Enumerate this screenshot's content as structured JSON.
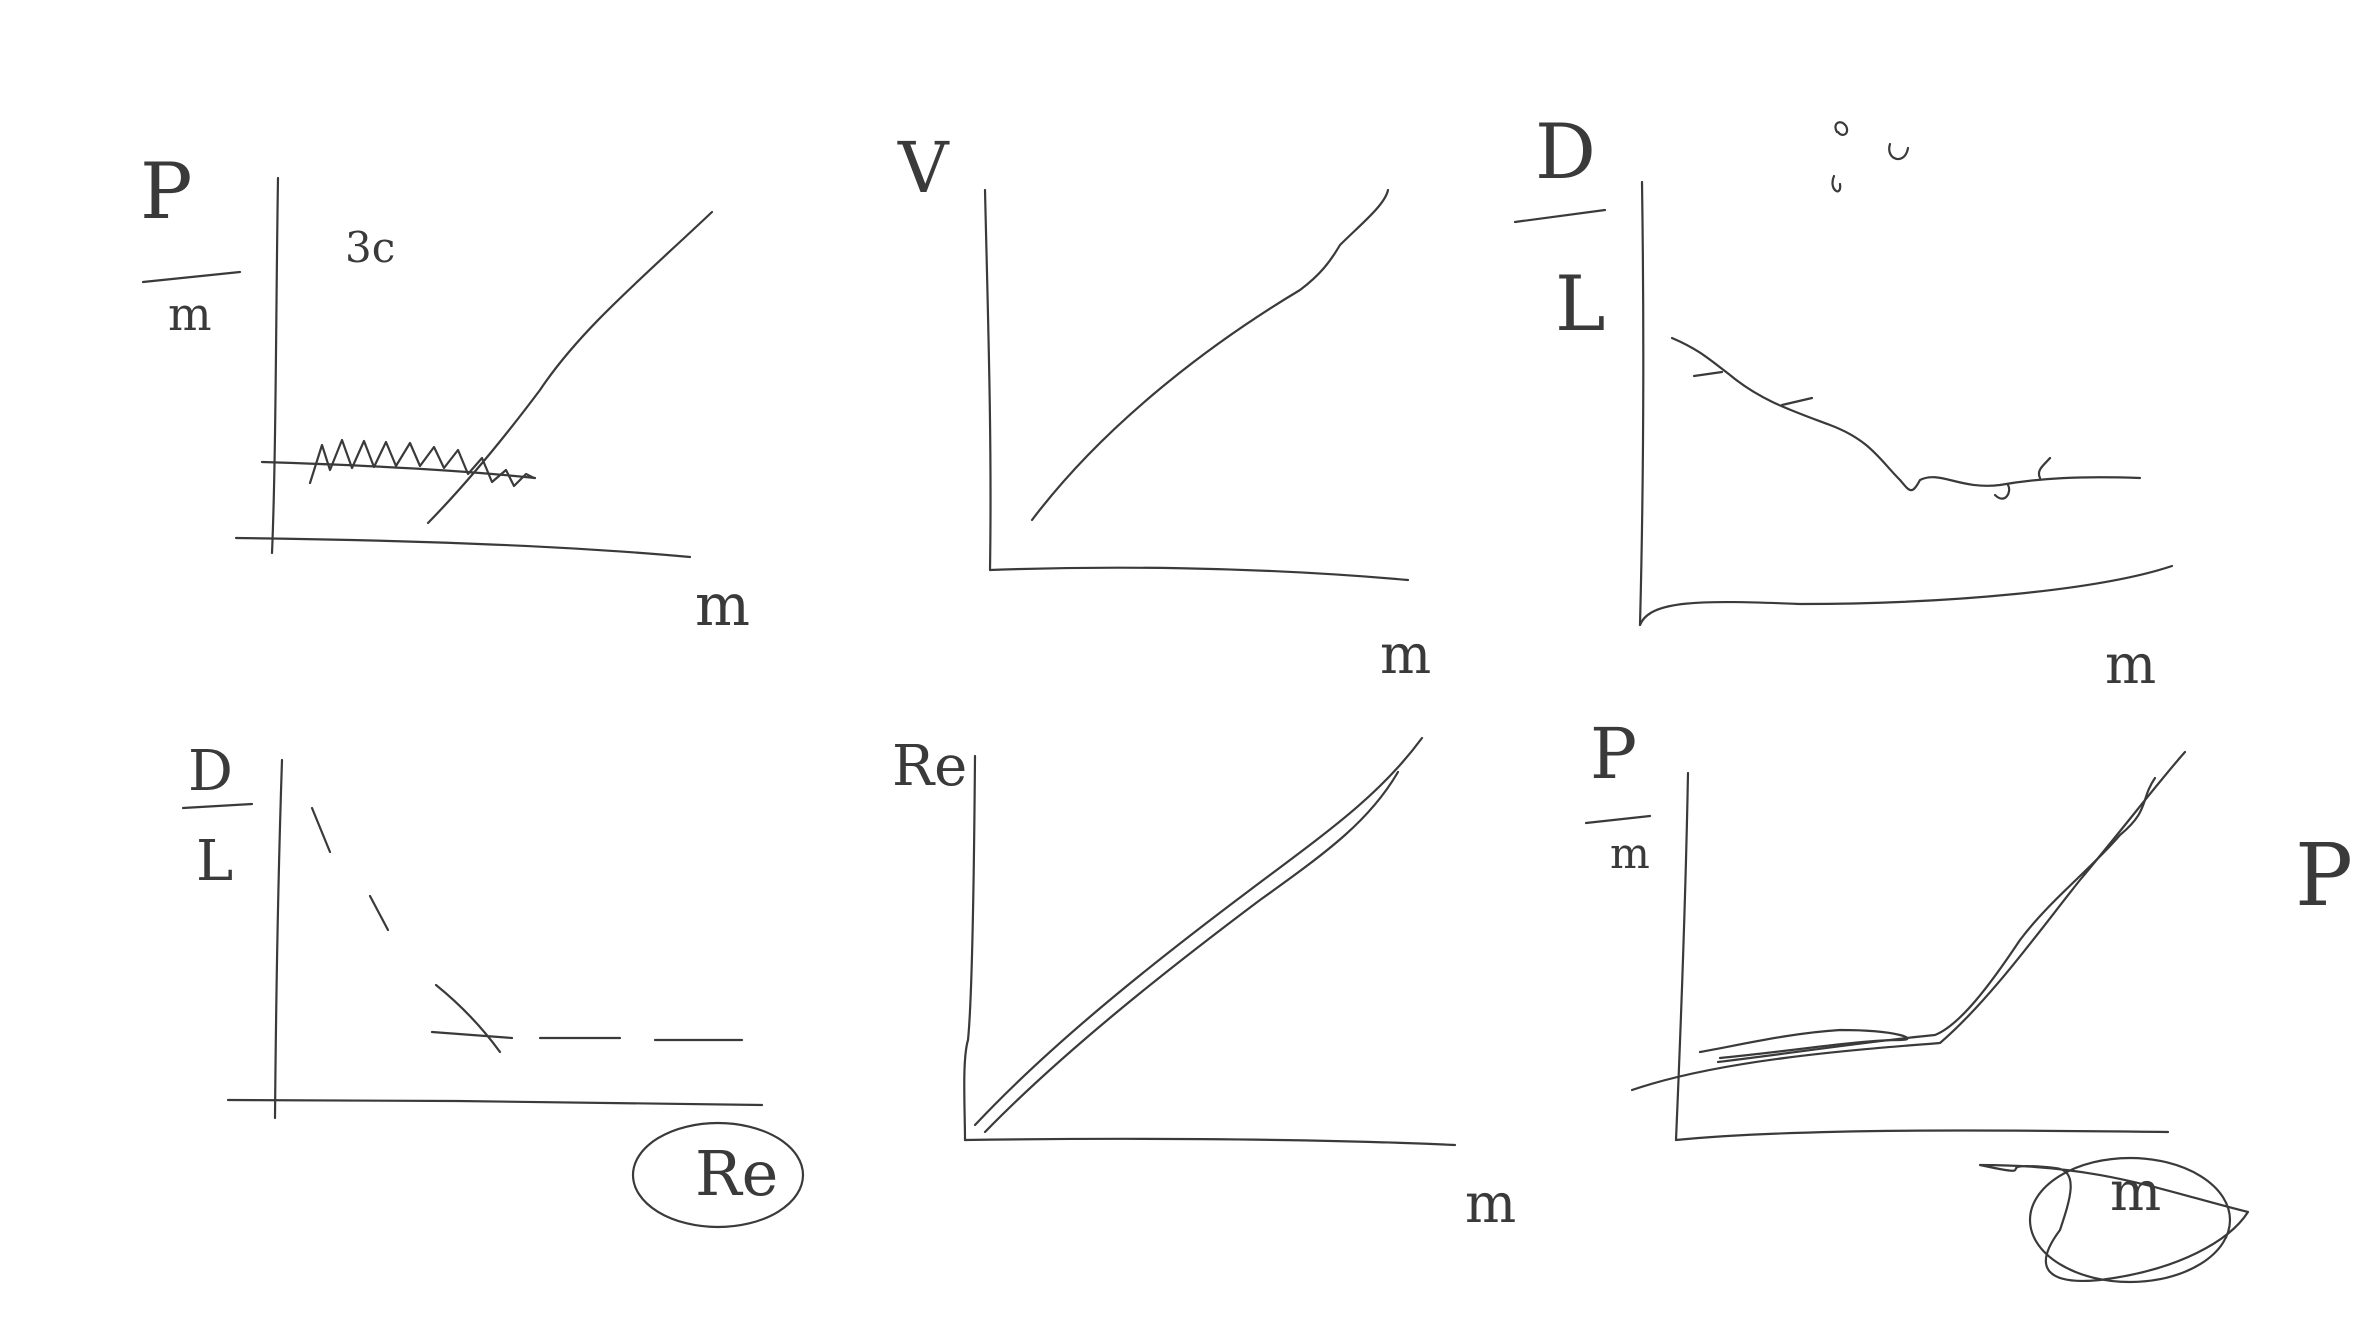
{
  "canvas": {
    "background": "#ffffff",
    "ink_color": "#3a3a3a"
  },
  "sketches": [
    {
      "id": "p-over-m-vs-m",
      "y_label_numerator": "P",
      "y_label_denominator": "m",
      "x_label": "m",
      "annotation": "3c"
    },
    {
      "id": "v-vs-m",
      "y_label": "V",
      "x_label": "m"
    },
    {
      "id": "d-over-l-vs-m",
      "y_label_numerator": "D",
      "y_label_denominator": "L",
      "x_label": "m"
    },
    {
      "id": "d-over-l-vs-re",
      "y_label_numerator": "D",
      "y_label_denominator": "L",
      "x_label": "Re"
    },
    {
      "id": "re-vs-m",
      "y_label": "Re",
      "x_label": "m"
    },
    {
      "id": "p-over-m-vs-m-2",
      "y_label_numerator": "P",
      "y_label_denominator": "m",
      "x_label": "m",
      "side_label": "P"
    }
  ]
}
